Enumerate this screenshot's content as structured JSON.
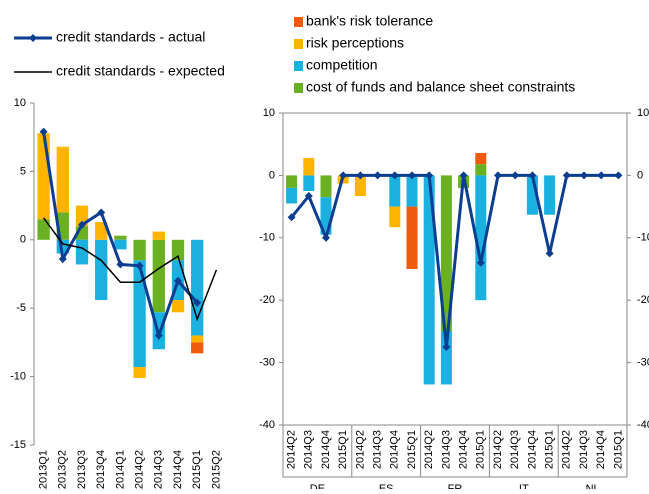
{
  "chart_data": [
    {
      "type": "bar",
      "categories": [
        "2013Q1",
        "2013Q2",
        "2013Q3",
        "2013Q4",
        "2014Q1",
        "2014Q2",
        "2014Q3",
        "2014Q4",
        "2015Q1",
        "2015Q2"
      ],
      "ylim": [
        -15,
        10
      ],
      "yticks": [
        -15,
        -10,
        -5,
        0,
        5,
        10
      ],
      "series": [
        {
          "name": "cost of funds and balance sheet constraints",
          "color": "#6ab023",
          "values": [
            1.5,
            2,
            1,
            0,
            0.3,
            -1.5,
            -5.3,
            -1.5,
            0,
            null
          ]
        },
        {
          "name": "competition",
          "color": "#1ab0e0",
          "values": [
            0,
            -1,
            -1.8,
            -4.4,
            -0.7,
            -7.8,
            -2.7,
            -2.9,
            -7,
            null
          ]
        },
        {
          "name": "risk perceptions",
          "color": "#ffb400",
          "values": [
            6.3,
            4.8,
            1.5,
            1.3,
            0,
            -0.8,
            0.6,
            -0.9,
            -0.5,
            null
          ]
        },
        {
          "name": "bank's risk tolerance",
          "color": "#f05a0f",
          "values": [
            0,
            0,
            0,
            0,
            0,
            0,
            0,
            0,
            -0.8,
            null
          ]
        },
        {
          "name": "credit standards - actual",
          "color": "#0b3d91",
          "line": true,
          "marker": true,
          "values": [
            7.9,
            -1.4,
            1.1,
            2.0,
            -1.8,
            -1.9,
            -7.0,
            -3.0,
            -4.6,
            null
          ]
        },
        {
          "name": "credit standards - expected",
          "color": "#000000",
          "line": true,
          "values": [
            1.6,
            -0.3,
            -0.6,
            -1.5,
            -3.1,
            -3.1,
            -2.1,
            -1.2,
            -5.8,
            -2.2
          ]
        }
      ]
    },
    {
      "type": "bar",
      "groups": [
        "DE",
        "ES",
        "FR",
        "IT",
        "NL"
      ],
      "categories": [
        "2014Q2",
        "2014Q3",
        "2014Q4",
        "2015Q1",
        "2014Q2",
        "2014Q3",
        "2014Q4",
        "2015Q1",
        "2014Q2",
        "2014Q3",
        "2014Q4",
        "2015Q1",
        "2014Q2",
        "2014Q3",
        "2014Q4",
        "2015Q1",
        "2014Q2",
        "2014Q3",
        "2014Q4",
        "2015Q1"
      ],
      "ylim": [
        -40,
        10
      ],
      "yticks": [
        -40,
        -30,
        -20,
        -10,
        0,
        10
      ],
      "y2lim": [
        -40,
        10
      ],
      "y2ticks": [
        -40,
        -30,
        -20,
        -10,
        0,
        10
      ],
      "series": [
        {
          "color": "#6ab023",
          "values": [
            -2,
            0,
            -3.5,
            0,
            0,
            0,
            0,
            0,
            0,
            -25,
            -2,
            1.8,
            0,
            0,
            0,
            0,
            0,
            0,
            0,
            0
          ]
        },
        {
          "color": "#1ab0e0",
          "values": [
            -2.5,
            -2.5,
            -6,
            0,
            0,
            0,
            -5,
            -5,
            -33.5,
            -8.5,
            0,
            -20,
            0,
            0,
            -6.3,
            -6.3,
            0,
            0,
            0,
            0
          ]
        },
        {
          "color": "#ffb400",
          "values": [
            0,
            2.8,
            0,
            -1.3,
            -3.3,
            0,
            -3.3,
            0,
            0,
            0,
            0,
            0,
            0,
            0,
            0,
            0,
            0,
            0,
            0,
            0
          ]
        },
        {
          "color": "#f05a0f",
          "values": [
            0,
            0,
            0,
            0,
            0,
            0,
            0,
            -10,
            0,
            0,
            0,
            1.8,
            0,
            0,
            0,
            0,
            0,
            0,
            0,
            0
          ]
        },
        {
          "color": "#0b3d91",
          "line": true,
          "marker": true,
          "values": [
            -6.7,
            -3.3,
            -10,
            0,
            0,
            0,
            0,
            0,
            0,
            -27.5,
            0,
            -14,
            0,
            0,
            0,
            -12.5,
            0,
            0,
            0,
            0
          ]
        }
      ]
    }
  ]
}
